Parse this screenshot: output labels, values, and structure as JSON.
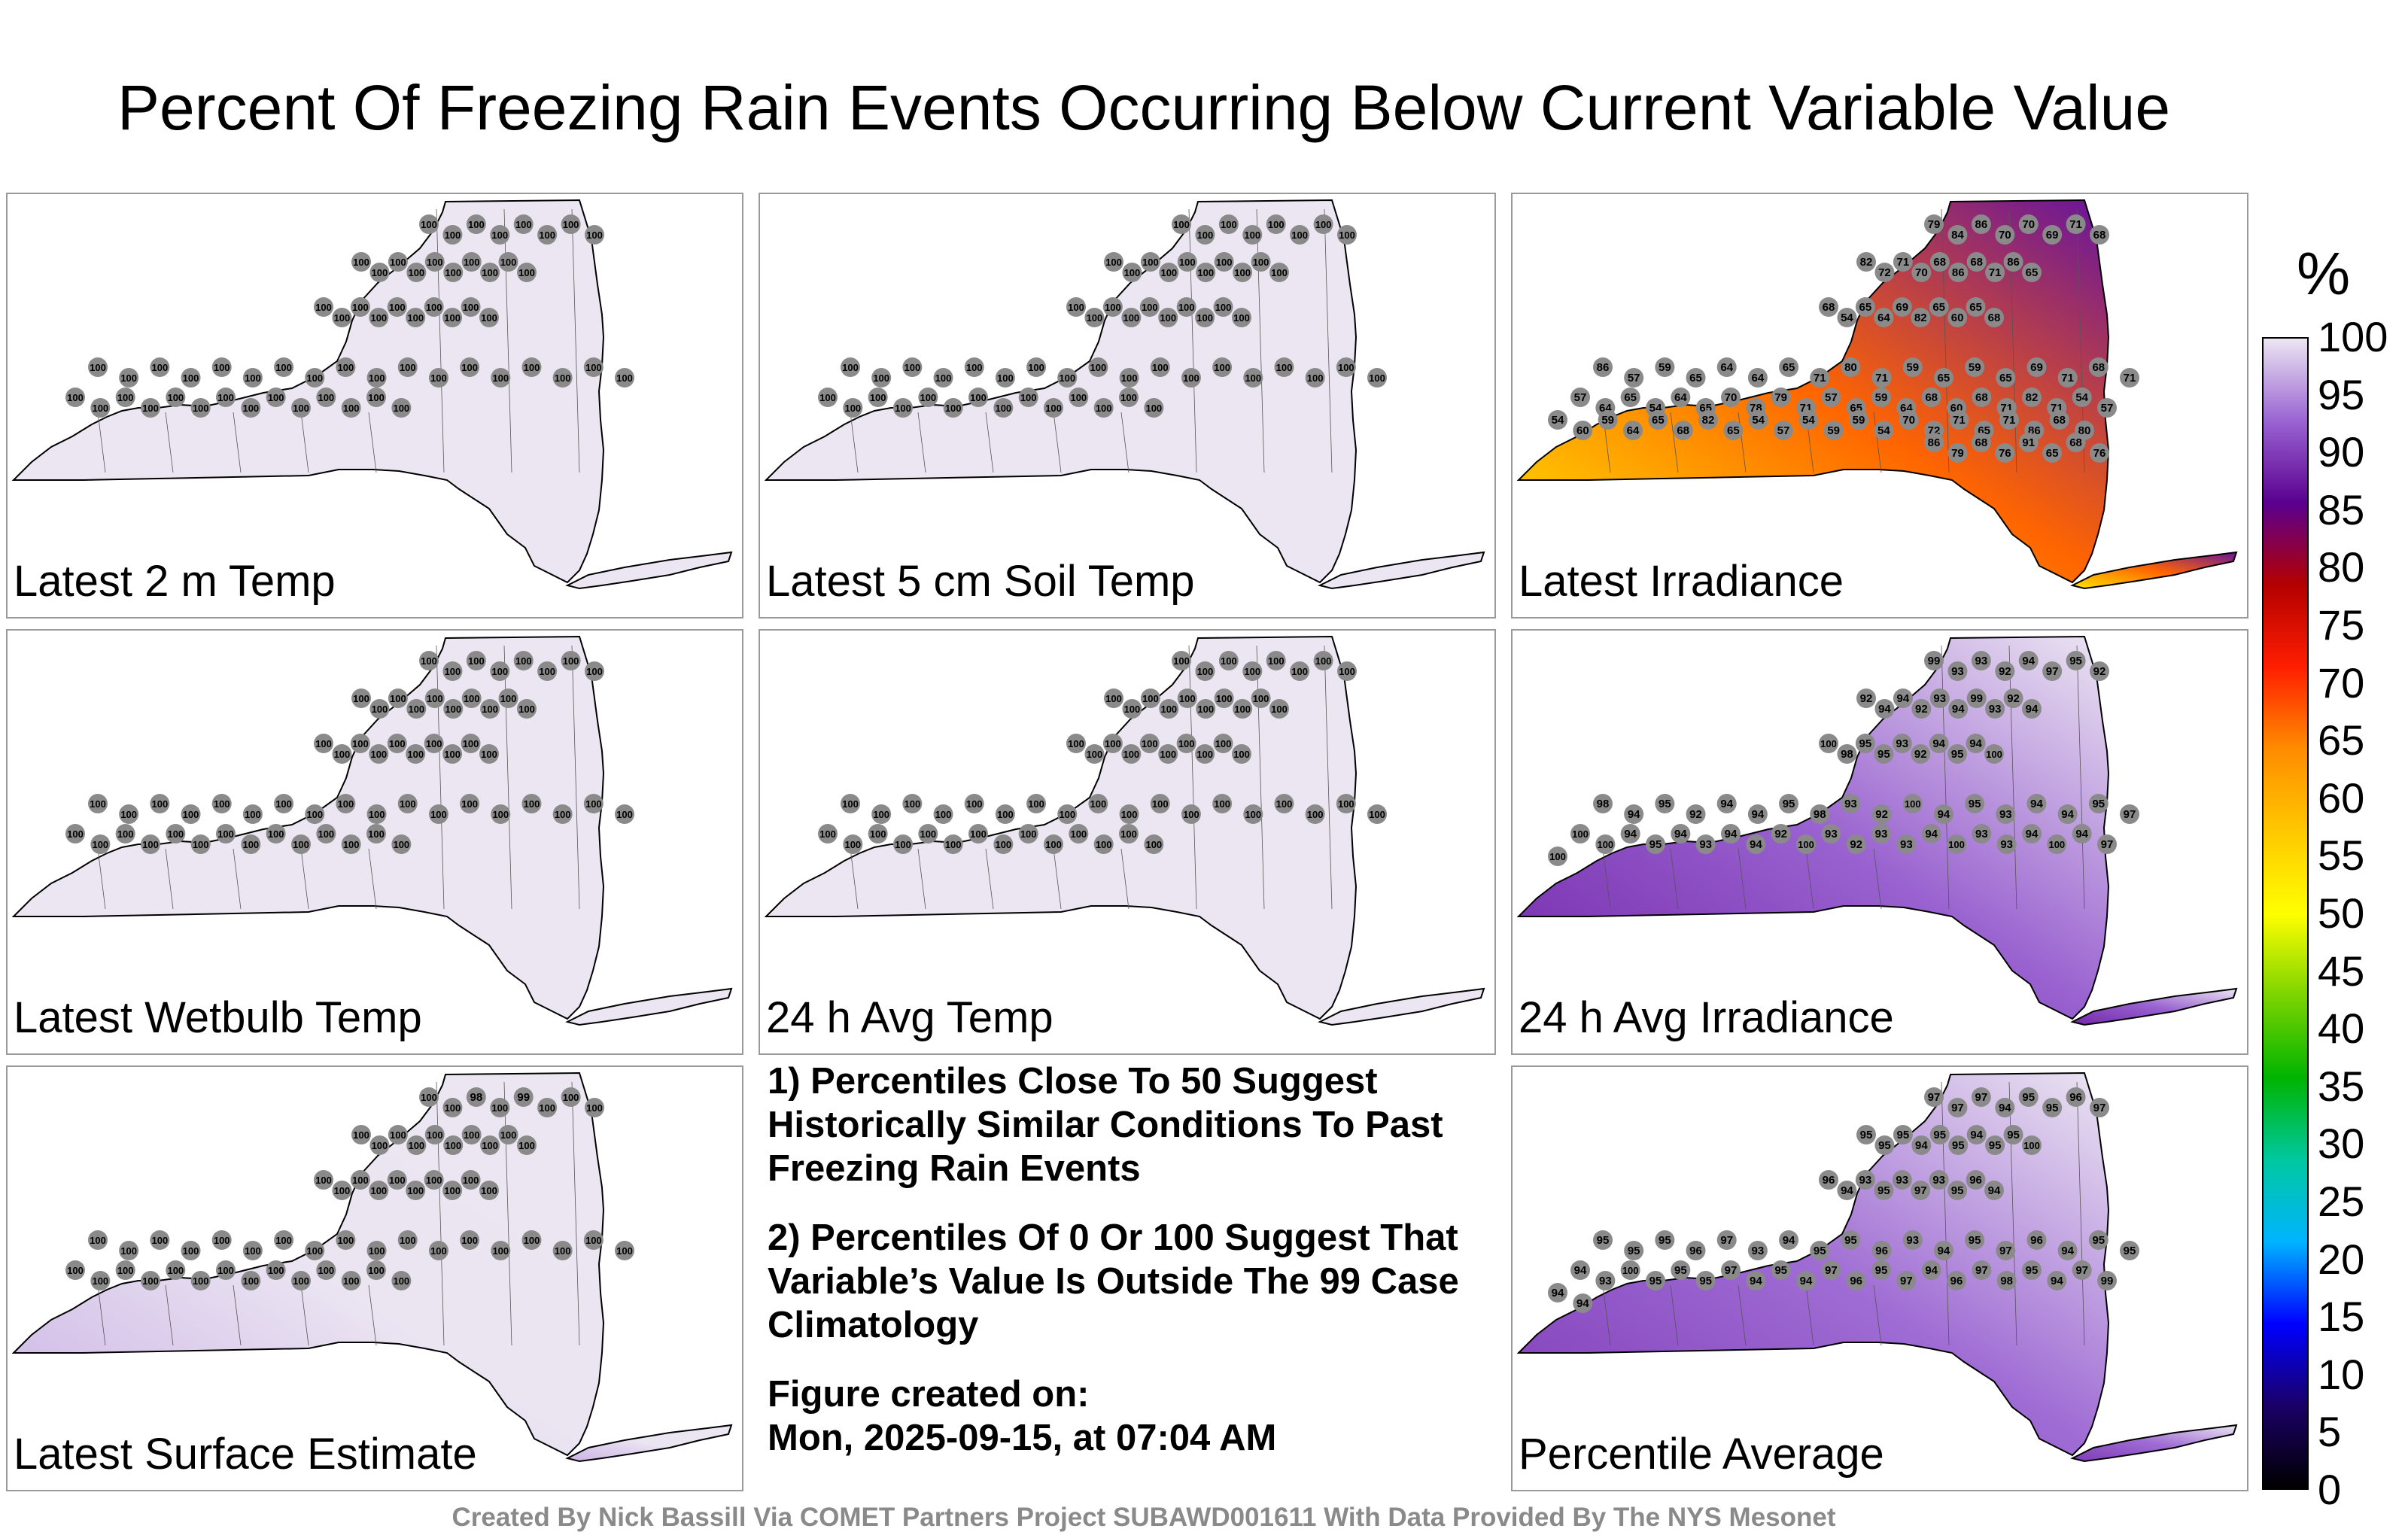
{
  "title": "Percent Of Freezing Rain Events Occurring Below Current Variable Value",
  "notes": {
    "note1": "1) Percentiles Close To 50 Suggest Historically Similar Conditions To Past Freezing Rain Events",
    "note2": "2) Percentiles Of 0 Or 100 Suggest That Variable’s Value Is Outside The 99 Case Climatology",
    "created_label": "Figure created on:",
    "created_value": "Mon, 2025-09-15, at 07:04 AM"
  },
  "credit": "Created By Nick Bassill Via COMET Partners Project SUBAWD001611 With Data Provided By The NYS Mesonet",
  "colorbar": {
    "unit": "%",
    "ticks": [
      "100",
      "95",
      "90",
      "85",
      "80",
      "75",
      "70",
      "65",
      "60",
      "55",
      "50",
      "45",
      "40",
      "35",
      "30",
      "25",
      "20",
      "15",
      "10",
      "5",
      "0"
    ],
    "range": [
      0,
      100
    ],
    "colors": [
      "#000000",
      "#1a0066",
      "#0000ff",
      "#00b4ff",
      "#00c8a0",
      "#00b400",
      "#7cd400",
      "#ffff00",
      "#ffc800",
      "#ff8c00",
      "#ff1e00",
      "#b40000",
      "#5a0090",
      "#9a64d2",
      "#ece6f2"
    ]
  },
  "chart_data": [
    {
      "type": "heatmap",
      "title": "Latest 2 m Temp",
      "uniform_value": 100,
      "station_values": [
        100,
        100,
        100,
        100,
        100,
        100,
        100,
        100,
        100,
        100,
        100,
        100,
        100,
        100,
        100,
        100,
        100,
        100,
        100,
        100,
        100,
        100,
        100,
        100,
        100,
        100,
        100,
        100,
        100,
        100,
        100,
        100,
        100,
        100,
        100,
        100,
        100,
        100,
        100,
        100,
        100,
        100,
        100,
        100,
        100,
        100,
        100,
        100,
        100,
        100,
        100,
        100,
        100,
        100,
        100,
        100,
        100,
        100,
        100,
        100
      ]
    },
    {
      "type": "heatmap",
      "title": "Latest 5 cm Soil Temp",
      "uniform_value": 100,
      "station_values": [
        100,
        100,
        100,
        100,
        100,
        100,
        100,
        100,
        100,
        100,
        100,
        100,
        100,
        100,
        100,
        100,
        100,
        100,
        100,
        100,
        100,
        100,
        100,
        100,
        100,
        100,
        100,
        100,
        100,
        100,
        100,
        100,
        100,
        100,
        100,
        100,
        100,
        100,
        100,
        100,
        100,
        100,
        100,
        100,
        100,
        100,
        100,
        100,
        100,
        100,
        100,
        100,
        100,
        100,
        100,
        100,
        100,
        100,
        100,
        100
      ]
    },
    {
      "type": "heatmap",
      "title": "Latest Irradiance",
      "range": [
        54,
        91
      ],
      "station_values": [
        79,
        84,
        86,
        70,
        70,
        69,
        71,
        68,
        82,
        72,
        71,
        70,
        68,
        86,
        68,
        71,
        86,
        65,
        68,
        54,
        65,
        64,
        69,
        82,
        65,
        60,
        65,
        68,
        86,
        57,
        59,
        65,
        64,
        64,
        65,
        71,
        80,
        71,
        59,
        65,
        59,
        65,
        69,
        71,
        68,
        71,
        57,
        64,
        65,
        54,
        64,
        65,
        70,
        78,
        79,
        71,
        57,
        65,
        59,
        64,
        68,
        60,
        68,
        71,
        82,
        71,
        54,
        57,
        54,
        60,
        59,
        64,
        65,
        68,
        82,
        65,
        54,
        57,
        54,
        59,
        59,
        54,
        70,
        72,
        71,
        65,
        71,
        86,
        68,
        80,
        86,
        79,
        68,
        76,
        91,
        65,
        68,
        76
      ]
    },
    {
      "type": "heatmap",
      "title": "Latest Wetbulb Temp",
      "uniform_value": 100,
      "station_values": [
        100,
        100,
        100,
        100,
        100,
        100,
        100,
        100,
        100,
        100,
        100,
        100,
        100,
        100,
        100,
        100,
        100,
        100,
        100,
        100,
        100,
        100,
        100,
        100,
        100,
        100,
        100,
        100,
        100,
        100,
        100,
        100,
        100,
        100,
        100,
        100,
        100,
        100,
        100,
        100,
        100,
        100,
        100,
        100,
        100,
        100,
        100,
        100,
        100,
        100,
        100,
        100,
        100,
        100,
        100,
        100,
        100,
        100,
        100,
        100
      ]
    },
    {
      "type": "heatmap",
      "title": "24 h Avg Temp",
      "uniform_value": 100,
      "station_values": [
        100,
        100,
        100,
        100,
        100,
        100,
        100,
        100,
        100,
        100,
        100,
        100,
        100,
        100,
        100,
        100,
        100,
        100,
        100,
        100,
        100,
        100,
        100,
        100,
        100,
        100,
        100,
        100,
        100,
        100,
        100,
        100,
        100,
        100,
        100,
        100,
        100,
        100,
        100,
        100,
        100,
        100,
        100,
        100,
        100,
        100,
        100,
        100,
        100,
        100,
        100,
        100,
        100,
        100,
        100,
        100,
        100,
        100,
        100,
        100
      ]
    },
    {
      "type": "heatmap",
      "title": "24 h Avg Irradiance",
      "range": [
        92,
        100
      ],
      "station_values": [
        99,
        93,
        93,
        92,
        94,
        97,
        95,
        92,
        92,
        94,
        94,
        92,
        93,
        94,
        99,
        93,
        92,
        94,
        100,
        98,
        95,
        95,
        93,
        92,
        94,
        95,
        94,
        100,
        98,
        94,
        95,
        92,
        94,
        94,
        95,
        98,
        93,
        92,
        100,
        94,
        95,
        93,
        94,
        94,
        95,
        97,
        100,
        100,
        94,
        95,
        94,
        93,
        94,
        94,
        92,
        100,
        93,
        92,
        93,
        93,
        94,
        100,
        93,
        93,
        94,
        100,
        94,
        97,
        100
      ]
    },
    {
      "type": "heatmap",
      "title": "Latest Surface Estimate",
      "range": [
        98,
        100
      ],
      "station_values": [
        100,
        100,
        98,
        100,
        99,
        100,
        100,
        100,
        100,
        100,
        100,
        100,
        100,
        100,
        100,
        100,
        100,
        100,
        100,
        100,
        100,
        100,
        100,
        100,
        100,
        100,
        100,
        100,
        100,
        100,
        100,
        100,
        100,
        100,
        100,
        100,
        100,
        100,
        100,
        100,
        100,
        100,
        100,
        100,
        100,
        100,
        100,
        100,
        100,
        100,
        100,
        100,
        100,
        100,
        100,
        100,
        100,
        100,
        100,
        100
      ]
    },
    {
      "type": "heatmap",
      "title": "Percentile Average",
      "range": [
        93,
        100
      ],
      "station_values": [
        97,
        97,
        97,
        94,
        95,
        95,
        96,
        97,
        95,
        95,
        95,
        94,
        95,
        95,
        94,
        95,
        95,
        100,
        96,
        94,
        93,
        95,
        93,
        97,
        93,
        95,
        96,
        94,
        95,
        95,
        95,
        96,
        97,
        93,
        94,
        95,
        95,
        96,
        93,
        94,
        95,
        97,
        96,
        94,
        95,
        95,
        94,
        93,
        100,
        95,
        95,
        95,
        97,
        94,
        95,
        94,
        97,
        96,
        95,
        97,
        94,
        96,
        97,
        98,
        95,
        94,
        97,
        99,
        94,
        94
      ]
    }
  ],
  "panels": [
    {
      "label": "Latest 2 m Temp"
    },
    {
      "label": "Latest 5 cm Soil Temp"
    },
    {
      "label": "Latest Irradiance"
    },
    {
      "label": "Latest Wetbulb Temp"
    },
    {
      "label": "24 h Avg Temp"
    },
    {
      "label": "24 h Avg Irradiance"
    },
    {
      "label": "Latest Surface Estimate"
    },
    {
      "label": "Percentile Average"
    }
  ]
}
